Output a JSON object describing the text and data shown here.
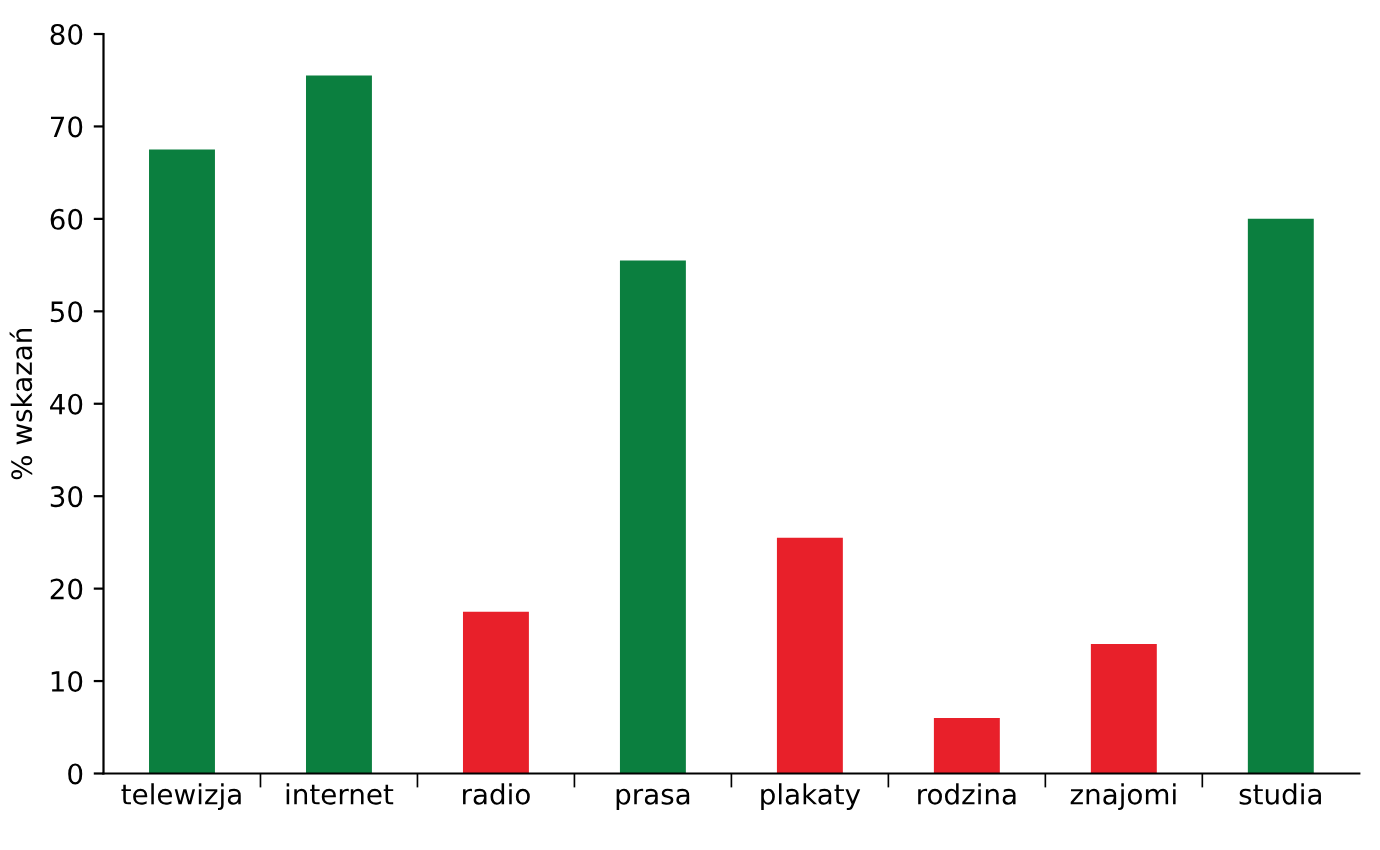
{
  "chart_data": {
    "type": "bar",
    "ylabel": "% wskazań",
    "categories": [
      "telewizja",
      "internet",
      "radio",
      "prasa",
      "plakaty",
      "rodzina",
      "znajomi",
      "studia"
    ],
    "values": [
      67.5,
      75.5,
      17.5,
      55.5,
      25.5,
      6,
      14,
      60
    ],
    "colors": [
      "#0b7f3f",
      "#0b7f3f",
      "#e8202a",
      "#0b7f3f",
      "#e8202a",
      "#e8202a",
      "#e8202a",
      "#0b7f3f"
    ],
    "ylim": [
      0,
      80
    ],
    "yticks": [
      0,
      10,
      20,
      30,
      40,
      50,
      60,
      70,
      80
    ],
    "grid": false
  }
}
